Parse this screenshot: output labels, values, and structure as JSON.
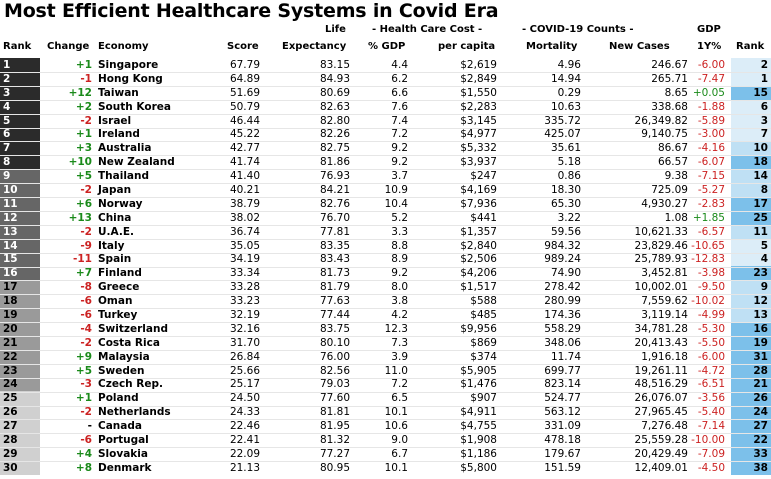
{
  "chart_data": {
    "type": "table",
    "title": "Most Efficient Healthcare Systems in Covid Era",
    "header": {
      "rank": "Rank",
      "change": "Change",
      "economy": "Economy",
      "score": "Score",
      "life1": "Life",
      "life2": "Expectancy",
      "hcc_group": "- Health Care Cost -",
      "gdp_pct": "% GDP",
      "per_capita": "per capita",
      "covid_group": "- COVID-19 Counts -",
      "mortality": "Mortality",
      "new_cases": "New Cases",
      "gdp1": "GDP",
      "gdp2": "1Y%",
      "rank2": "Rank"
    },
    "rows": [
      {
        "rank": "1",
        "change": "+1",
        "economy": "Singapore",
        "score": "67.79",
        "life": "83.15",
        "gdp_pct": "4.4",
        "per_capita": "$2,619",
        "mortality": "4.96",
        "new_cases": "246.67",
        "gdp1y": "-6.00",
        "rank2": "2"
      },
      {
        "rank": "2",
        "change": "-1",
        "economy": "Hong Kong",
        "score": "64.89",
        "life": "84.93",
        "gdp_pct": "6.2",
        "per_capita": "$2,849",
        "mortality": "14.94",
        "new_cases": "265.71",
        "gdp1y": "-7.47",
        "rank2": "1"
      },
      {
        "rank": "3",
        "change": "+12",
        "economy": "Taiwan",
        "score": "51.69",
        "life": "80.69",
        "gdp_pct": "6.6",
        "per_capita": "$1,550",
        "mortality": "0.29",
        "new_cases": "8.65",
        "gdp1y": "+0.05",
        "rank2": "15"
      },
      {
        "rank": "4",
        "change": "+2",
        "economy": "South Korea",
        "score": "50.79",
        "life": "82.63",
        "gdp_pct": "7.6",
        "per_capita": "$2,283",
        "mortality": "10.63",
        "new_cases": "338.68",
        "gdp1y": "-1.88",
        "rank2": "6"
      },
      {
        "rank": "5",
        "change": "-2",
        "economy": "Israel",
        "score": "46.44",
        "life": "82.80",
        "gdp_pct": "7.4",
        "per_capita": "$3,145",
        "mortality": "335.72",
        "new_cases": "26,349.82",
        "gdp1y": "-5.89",
        "rank2": "3"
      },
      {
        "rank": "6",
        "change": "+1",
        "economy": "Ireland",
        "score": "45.22",
        "life": "82.26",
        "gdp_pct": "7.2",
        "per_capita": "$4,977",
        "mortality": "425.07",
        "new_cases": "9,140.75",
        "gdp1y": "-3.00",
        "rank2": "7"
      },
      {
        "rank": "7",
        "change": "+3",
        "economy": "Australia",
        "score": "42.77",
        "life": "82.75",
        "gdp_pct": "9.2",
        "per_capita": "$5,332",
        "mortality": "35.61",
        "new_cases": "86.67",
        "gdp1y": "-4.16",
        "rank2": "10"
      },
      {
        "rank": "8",
        "change": "+10",
        "economy": "New Zealand",
        "score": "41.74",
        "life": "81.86",
        "gdp_pct": "9.2",
        "per_capita": "$3,937",
        "mortality": "5.18",
        "new_cases": "66.57",
        "gdp1y": "-6.07",
        "rank2": "18"
      },
      {
        "rank": "9",
        "change": "+5",
        "economy": "Thailand",
        "score": "41.40",
        "life": "76.93",
        "gdp_pct": "3.7",
        "per_capita": "$247",
        "mortality": "0.86",
        "new_cases": "9.38",
        "gdp1y": "-7.15",
        "rank2": "14"
      },
      {
        "rank": "10",
        "change": "-2",
        "economy": "Japan",
        "score": "40.21",
        "life": "84.21",
        "gdp_pct": "10.9",
        "per_capita": "$4,169",
        "mortality": "18.30",
        "new_cases": "725.09",
        "gdp1y": "-5.27",
        "rank2": "8"
      },
      {
        "rank": "11",
        "change": "+6",
        "economy": "Norway",
        "score": "38.79",
        "life": "82.76",
        "gdp_pct": "10.4",
        "per_capita": "$7,936",
        "mortality": "65.30",
        "new_cases": "4,930.27",
        "gdp1y": "-2.83",
        "rank2": "17"
      },
      {
        "rank": "12",
        "change": "+13",
        "economy": "China",
        "score": "38.02",
        "life": "76.70",
        "gdp_pct": "5.2",
        "per_capita": "$441",
        "mortality": "3.22",
        "new_cases": "1.08",
        "gdp1y": "+1.85",
        "rank2": "25"
      },
      {
        "rank": "13",
        "change": "-2",
        "economy": "U.A.E.",
        "score": "36.74",
        "life": "77.81",
        "gdp_pct": "3.3",
        "per_capita": "$1,357",
        "mortality": "59.56",
        "new_cases": "10,621.33",
        "gdp1y": "-6.57",
        "rank2": "11"
      },
      {
        "rank": "14",
        "change": "-9",
        "economy": "Italy",
        "score": "35.05",
        "life": "83.35",
        "gdp_pct": "8.8",
        "per_capita": "$2,840",
        "mortality": "984.32",
        "new_cases": "23,829.46",
        "gdp1y": "-10.65",
        "rank2": "5"
      },
      {
        "rank": "15",
        "change": "-11",
        "economy": "Spain",
        "score": "34.19",
        "life": "83.43",
        "gdp_pct": "8.9",
        "per_capita": "$2,506",
        "mortality": "989.24",
        "new_cases": "25,789.93",
        "gdp1y": "-12.83",
        "rank2": "4"
      },
      {
        "rank": "16",
        "change": "+7",
        "economy": "Finland",
        "score": "33.34",
        "life": "81.73",
        "gdp_pct": "9.2",
        "per_capita": "$4,206",
        "mortality": "74.90",
        "new_cases": "3,452.81",
        "gdp1y": "-3.98",
        "rank2": "23"
      },
      {
        "rank": "17",
        "change": "-8",
        "economy": "Greece",
        "score": "33.28",
        "life": "81.79",
        "gdp_pct": "8.0",
        "per_capita": "$1,517",
        "mortality": "278.42",
        "new_cases": "10,002.01",
        "gdp1y": "-9.50",
        "rank2": "9"
      },
      {
        "rank": "18",
        "change": "-6",
        "economy": "Oman",
        "score": "33.23",
        "life": "77.63",
        "gdp_pct": "3.8",
        "per_capita": "$588",
        "mortality": "280.99",
        "new_cases": "7,559.62",
        "gdp1y": "-10.02",
        "rank2": "12"
      },
      {
        "rank": "19",
        "change": "-6",
        "economy": "Turkey",
        "score": "32.19",
        "life": "77.44",
        "gdp_pct": "4.2",
        "per_capita": "$485",
        "mortality": "174.36",
        "new_cases": "3,119.14",
        "gdp1y": "-4.99",
        "rank2": "13"
      },
      {
        "rank": "20",
        "change": "-4",
        "economy": "Switzerland",
        "score": "32.16",
        "life": "83.75",
        "gdp_pct": "12.3",
        "per_capita": "$9,956",
        "mortality": "558.29",
        "new_cases": "34,781.28",
        "gdp1y": "-5.30",
        "rank2": "16"
      },
      {
        "rank": "21",
        "change": "-2",
        "economy": "Costa Rica",
        "score": "31.70",
        "life": "80.10",
        "gdp_pct": "7.3",
        "per_capita": "$869",
        "mortality": "348.06",
        "new_cases": "20,413.43",
        "gdp1y": "-5.50",
        "rank2": "19"
      },
      {
        "rank": "22",
        "change": "+9",
        "economy": "Malaysia",
        "score": "26.84",
        "life": "76.00",
        "gdp_pct": "3.9",
        "per_capita": "$374",
        "mortality": "11.74",
        "new_cases": "1,916.18",
        "gdp1y": "-6.00",
        "rank2": "31"
      },
      {
        "rank": "23",
        "change": "+5",
        "economy": "Sweden",
        "score": "25.66",
        "life": "82.56",
        "gdp_pct": "11.0",
        "per_capita": "$5,905",
        "mortality": "699.77",
        "new_cases": "19,261.11",
        "gdp1y": "-4.72",
        "rank2": "28"
      },
      {
        "rank": "24",
        "change": "-3",
        "economy": "Czech Rep.",
        "score": "25.17",
        "life": "79.03",
        "gdp_pct": "7.2",
        "per_capita": "$1,476",
        "mortality": "823.14",
        "new_cases": "48,516.29",
        "gdp1y": "-6.51",
        "rank2": "21"
      },
      {
        "rank": "25",
        "change": "+1",
        "economy": "Poland",
        "score": "24.50",
        "life": "77.60",
        "gdp_pct": "6.5",
        "per_capita": "$907",
        "mortality": "524.77",
        "new_cases": "26,076.07",
        "gdp1y": "-3.56",
        "rank2": "26"
      },
      {
        "rank": "26",
        "change": "-2",
        "economy": "Netherlands",
        "score": "24.33",
        "life": "81.81",
        "gdp_pct": "10.1",
        "per_capita": "$4,911",
        "mortality": "563.12",
        "new_cases": "27,965.45",
        "gdp1y": "-5.40",
        "rank2": "24"
      },
      {
        "rank": "27",
        "change": "-",
        "economy": "Canada",
        "score": "22.46",
        "life": "81.95",
        "gdp_pct": "10.6",
        "per_capita": "$4,755",
        "mortality": "331.09",
        "new_cases": "7,276.48",
        "gdp1y": "-7.14",
        "rank2": "27"
      },
      {
        "rank": "28",
        "change": "-6",
        "economy": "Portugal",
        "score": "22.41",
        "life": "81.32",
        "gdp_pct": "9.0",
        "per_capita": "$1,908",
        "mortality": "478.18",
        "new_cases": "25,559.28",
        "gdp1y": "-10.00",
        "rank2": "22"
      },
      {
        "rank": "29",
        "change": "+4",
        "economy": "Slovakia",
        "score": "22.09",
        "life": "77.27",
        "gdp_pct": "6.7",
        "per_capita": "$1,186",
        "mortality": "179.67",
        "new_cases": "20,429.49",
        "gdp1y": "-7.09",
        "rank2": "33"
      },
      {
        "rank": "30",
        "change": "+8",
        "economy": "Denmark",
        "score": "21.13",
        "life": "80.95",
        "gdp_pct": "10.1",
        "per_capita": "$5,800",
        "mortality": "151.59",
        "new_cases": "12,409.01",
        "gdp1y": "-4.50",
        "rank2": "38"
      }
    ]
  },
  "colors": {
    "tier1": "#2b2b2b",
    "tier2": "#666666",
    "tier3": "#9a9a9a",
    "tier4": "#d0d0d0",
    "positive": "#1a8a1a",
    "negative": "#cc2222",
    "rank_light": "#dcedf8",
    "rank_mid": "#bfe0f4",
    "rank_dark": "#7cc0ea"
  }
}
